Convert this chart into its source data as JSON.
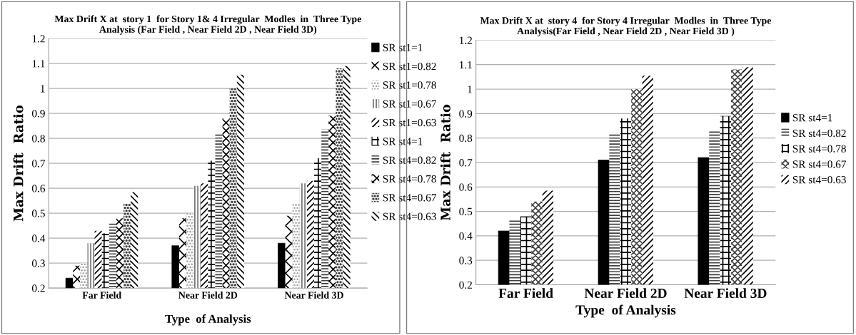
{
  "chart_data": [
    {
      "type": "bar",
      "title": "Max Drift X at  story 1  for Story 1& 4 Irregular  Modles  in  Three Type\nAnalysis (Far Field , Near Field 2D , Near Field 3D)",
      "xlabel": "Type  of Analysis",
      "ylabel": "Max Drift  Ratio",
      "categories": [
        "Far Field",
        "Near Field 2D",
        "Near Field 3D"
      ],
      "ylim": [
        0.2,
        1.2
      ],
      "yticks": [
        {
          "value": 0.2,
          "label": "0.2"
        },
        {
          "value": 0.3,
          "label": "0.3"
        },
        {
          "value": 0.4,
          "label": "0.4"
        },
        {
          "value": 0.5,
          "label": "0.5"
        },
        {
          "value": 0.6,
          "label": "0.6"
        },
        {
          "value": 0.7,
          "label": "0.7"
        },
        {
          "value": 0.8,
          "label": "0.8"
        },
        {
          "value": 0.9,
          "label": "0.9"
        },
        {
          "value": 1,
          "label": "1"
        },
        {
          "value": 1.1,
          "label": "1.1"
        },
        {
          "value": 1.2,
          "label": "1.2"
        }
      ],
      "grid": "y",
      "legend": "right",
      "series": [
        {
          "name": "SR st1=1",
          "color": "#000000",
          "values": [
            0.24,
            0.37,
            0.38
          ]
        },
        {
          "name": "SR st1=0.82",
          "color": "#000000",
          "values": [
            0.29,
            0.48,
            0.49
          ]
        },
        {
          "name": "SR st1=0.78",
          "color": "#909090",
          "values": [
            0.3,
            0.5,
            0.54
          ]
        },
        {
          "name": "SR st1=0.67",
          "color": "#707070",
          "values": [
            0.38,
            0.61,
            0.62
          ]
        },
        {
          "name": "SR st1=0.63",
          "color": "#000000",
          "values": [
            0.43,
            0.62,
            0.63
          ]
        },
        {
          "name": "SR st4=1",
          "color": "#000000",
          "values": [
            0.42,
            0.71,
            0.72
          ]
        },
        {
          "name": "SR st4=0.82",
          "color": "#404040",
          "values": [
            0.46,
            0.82,
            0.835
          ]
        },
        {
          "name": "SR st4=0.78",
          "color": "#000000",
          "values": [
            0.48,
            0.88,
            0.89
          ]
        },
        {
          "name": "SR st4=0.67",
          "color": "#404040",
          "values": [
            0.54,
            1.0,
            1.08
          ]
        },
        {
          "name": "SR st4=0.63",
          "color": "#000000",
          "values": [
            0.585,
            1.055,
            1.09
          ]
        }
      ]
    },
    {
      "type": "bar",
      "title": "Max Drift X at  story 4  for Story 4 Irregular  Modles  in  Three Type\nAnalysis(Far Field , Near Field 2D , Near Field 3D )",
      "xlabel": "Type  of Analysis",
      "ylabel": "Max Drift  Ratio",
      "categories": [
        "Far Field",
        "Near Field 2D",
        "Near Field 3D"
      ],
      "ylim": [
        0.2,
        1.2
      ],
      "yticks": [
        {
          "value": 0.2,
          "label": "0.2"
        },
        {
          "value": 0.3,
          "label": "0.3"
        },
        {
          "value": 0.4,
          "label": "0.4"
        },
        {
          "value": 0.5,
          "label": "0.5"
        },
        {
          "value": 0.6,
          "label": "0.6"
        },
        {
          "value": 0.7,
          "label": "0.7"
        },
        {
          "value": 0.8,
          "label": "0.8"
        },
        {
          "value": 0.9,
          "label": "0.9"
        },
        {
          "value": 1,
          "label": "1"
        },
        {
          "value": 1.1,
          "label": "1.1"
        },
        {
          "value": 1.2,
          "label": "1.2"
        }
      ],
      "grid": "y",
      "legend": "right",
      "series": [
        {
          "name": "SR st4=1",
          "color": "#000000",
          "values": [
            0.42,
            0.71,
            0.72
          ]
        },
        {
          "name": "SR st4=0.82",
          "color": "#404040",
          "values": [
            0.465,
            0.82,
            0.83
          ]
        },
        {
          "name": "SR st4=0.78",
          "color": "#000000",
          "values": [
            0.48,
            0.88,
            0.89
          ]
        },
        {
          "name": "SR st4=0.67",
          "color": "#404040",
          "values": [
            0.54,
            1.0,
            1.08
          ]
        },
        {
          "name": "SR st4=0.63",
          "color": "#000000",
          "values": [
            0.585,
            1.055,
            1.09
          ]
        }
      ]
    }
  ]
}
